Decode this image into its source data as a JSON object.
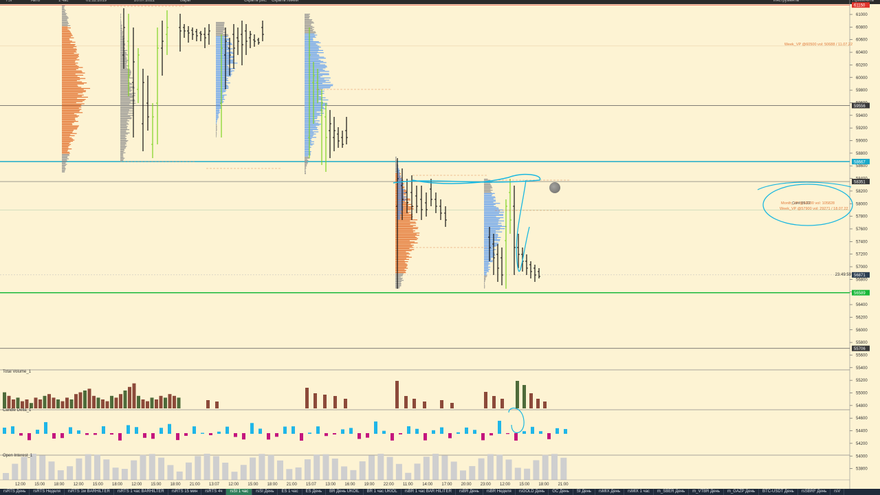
{
  "topbar": {
    "items": [
      "TSI",
      "Авто",
      "1 час",
      "01.12.2019",
      "20.07.2022",
      "Бары",
      "Скрыть рис.",
      "Скрыть линии",
      "Инструменты",
      "Применить"
    ]
  },
  "price_axis": {
    "ticks": [
      "61000",
      "60800",
      "60600",
      "60400",
      "60200",
      "60000",
      "59800",
      "59600",
      "59400",
      "59200",
      "59000",
      "58800",
      "58600",
      "58400",
      "58200",
      "58000",
      "57800",
      "57600",
      "57400",
      "57200",
      "57000",
      "56800",
      "56600",
      "56400",
      "56200",
      "56000",
      "55800",
      "55600",
      "55400",
      "55200",
      "55000",
      "54800",
      "54600",
      "54400",
      "54200",
      "54000",
      "53800"
    ],
    "badges": [
      {
        "price": "61150",
        "color": "#e0342b"
      },
      {
        "price": "59556",
        "color": "#3a3a3a"
      },
      {
        "price": "58667",
        "color": "#1aa9c9"
      },
      {
        "price": "58351",
        "color": "#3a3a3a"
      },
      {
        "price": "56871",
        "color": "#2c3e50"
      },
      {
        "price": "56589",
        "color": "#19b83a"
      },
      {
        "price": "55706",
        "color": "#3a3a3a"
      }
    ]
  },
  "time_axis": {
    "labels": [
      "12:00",
      "15:00",
      "18:00",
      "12:00",
      "15:00",
      "18:00",
      "12:00",
      "15:00",
      "18:00",
      "21:00",
      "13:07",
      "12:00",
      "15:00",
      "18:00",
      "21:00",
      "15:07",
      "13:00",
      "16:00",
      "19:00",
      "22:00",
      "11:00",
      "14:00",
      "17:00",
      "20:00",
      "23:00",
      "12:00",
      "15:00",
      "18:00",
      "21:00"
    ]
  },
  "annotations": {
    "vp_week_top": "Week_VP @60500 vol: 50688 / 11.07.22",
    "vp_month": "Month_VP @58000 vol: 105828",
    "vp_conf": "Conf 09.22",
    "vp_week_mid": "Week_VP @57900 vol: 29271 / 18.07.22",
    "timer": "23:49:59"
  },
  "panes": {
    "volume_label": "Total Volume_1",
    "delta_label": "Candle Delta_1",
    "oi_label": "Open Interest_1"
  },
  "tabs": [
    {
      "label": "rsRTS День",
      "active": false
    },
    {
      "label": "rsRTS Неделя",
      "active": false
    },
    {
      "label": "rsRTS 1м BARHILTER",
      "active": false
    },
    {
      "label": "rsRTS 1 час BARHILTER",
      "active": false
    },
    {
      "label": "rsRTS 15 мин",
      "active": false
    },
    {
      "label": "rsRTS 4ч",
      "active": false
    },
    {
      "label": "rsSI 1 час",
      "active": true
    },
    {
      "label": "rsSI День",
      "active": false
    },
    {
      "label": "ES 1 час",
      "active": false
    },
    {
      "label": "ES День",
      "active": false
    },
    {
      "label": "BR День UKOIL",
      "active": false
    },
    {
      "label": "BR 1 час UKIOL",
      "active": false
    },
    {
      "label": "rsBR 1 час BAR HILITER",
      "active": false
    },
    {
      "label": "rsBR День",
      "active": false
    },
    {
      "label": "rsBR Неделя",
      "active": false
    },
    {
      "label": "rsGOLD День",
      "active": false
    },
    {
      "label": "GC День",
      "active": false
    },
    {
      "label": "SI День",
      "active": false
    },
    {
      "label": "rsMIX День",
      "active": false
    },
    {
      "label": "rsMIX 1 час",
      "active": false
    },
    {
      "label": "m_SBER День",
      "active": false
    },
    {
      "label": "m_VTBR День",
      "active": false
    },
    {
      "label": "m_GAZP День",
      "active": false
    },
    {
      "label": "BTC-USDT День",
      "active": false
    },
    {
      "label": "rsSBRF День",
      "active": false
    },
    {
      "label": "rsV",
      "active": false
    }
  ],
  "colors": {
    "background": "#fdf3d3",
    "bull": "#7ed321",
    "bear": "#111111",
    "profile_orange": "#e0651e",
    "profile_blue": "#5b9bf0",
    "profile_gray": "#8c8c8c",
    "level_cyan": "#1aa9c9",
    "level_green": "#19b83a",
    "vol_bear": "#8c4a3a",
    "vol_bull": "#4e6b3a",
    "delta_pos": "#1fb6e8",
    "delta_neg": "#c4157e",
    "oi": "#cfcfcf",
    "drawing": "#19b7e0"
  }
}
